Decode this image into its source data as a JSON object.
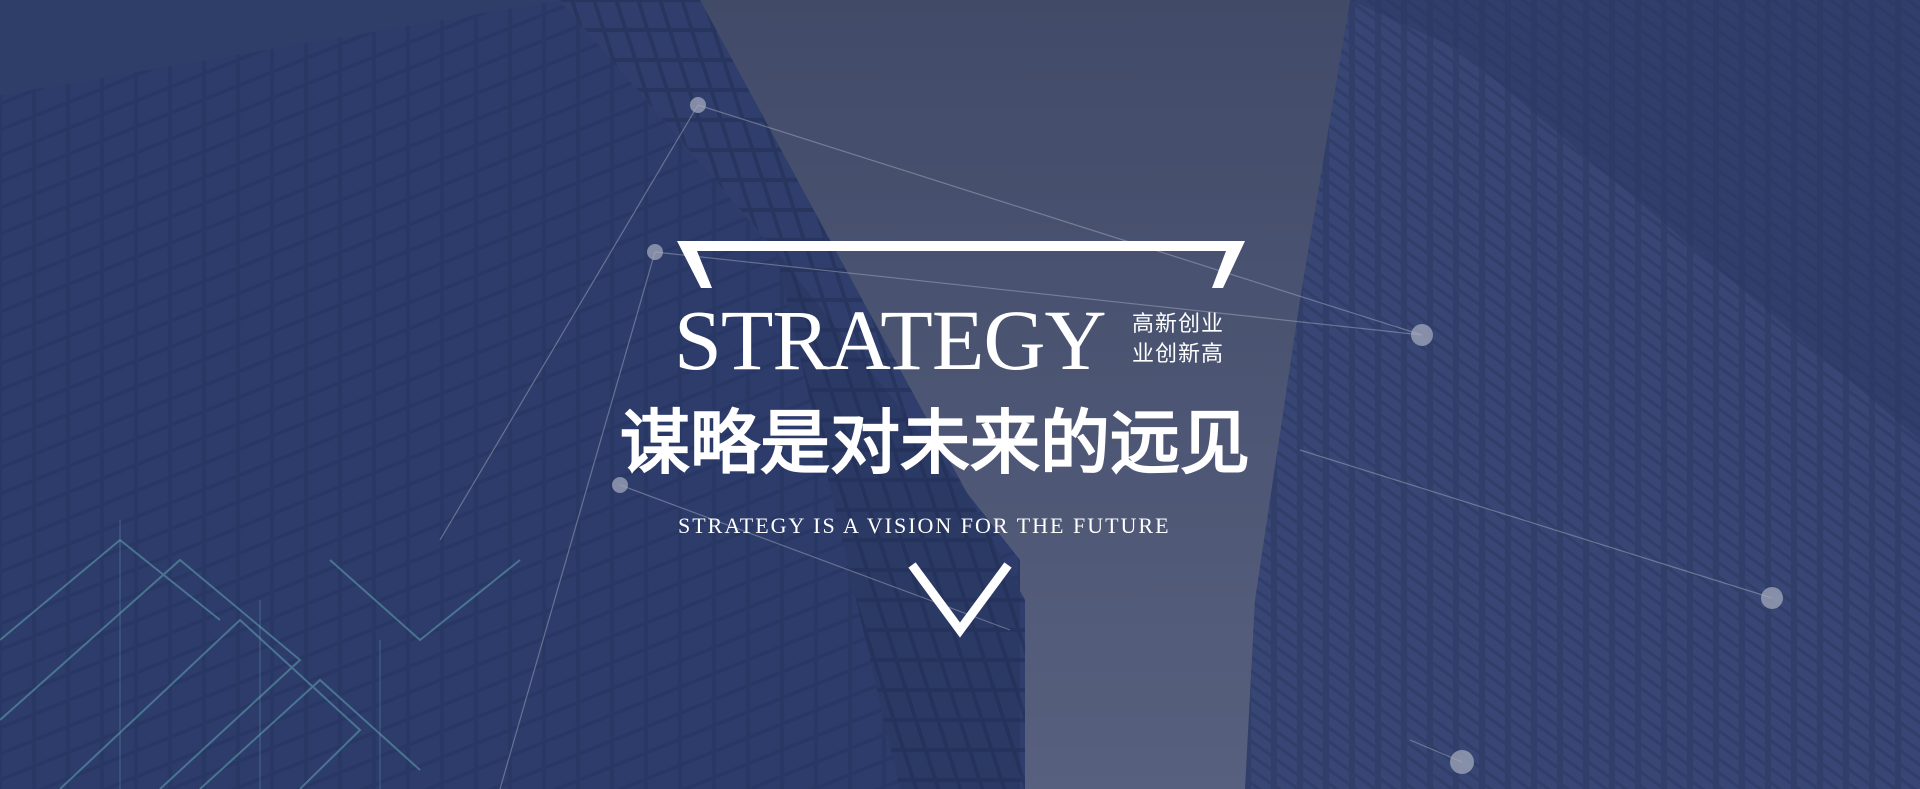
{
  "banner": {
    "headline_en": "STRATEGY",
    "slogan_line1": "高新创业",
    "slogan_line2": "业创新高",
    "headline_cn": "谋略是对未来的远见",
    "tagline": "STRATEGY IS A VISION FOR THE FUTURE"
  },
  "colors": {
    "overlay": "#3a4466",
    "text": "#ffffff",
    "building": "#2c3a6b",
    "accent_line": "#7fd3d6"
  },
  "icons": {
    "frame_top": "trapezoid-bracket",
    "frame_bottom": "down-chevron"
  }
}
